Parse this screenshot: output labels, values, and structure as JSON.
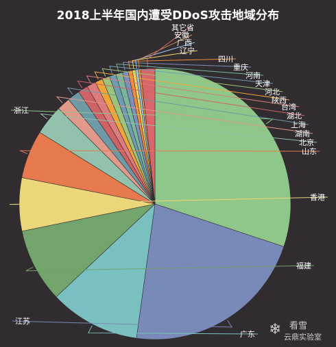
{
  "chart_data": {
    "type": "pie",
    "title": "2018上半年国内遭受DDoS攻击地域分布",
    "start_angle_deg": 0,
    "slices": [
      {
        "label": "浙江",
        "value": 30.4,
        "color": "#8fc78a"
      },
      {
        "label": "江苏",
        "value": 22.3,
        "color": "#7a8ab8"
      },
      {
        "label": "广东",
        "value": 10.9,
        "color": "#7bc0c0"
      },
      {
        "label": "福建",
        "value": 8.9,
        "color": "#72a46b"
      },
      {
        "label": "香港",
        "value": 6.4,
        "color": "#ecd67a"
      },
      {
        "label": "山东",
        "value": 5.8,
        "color": "#e67a4e"
      },
      {
        "label": "北京",
        "value": 3.6,
        "color": "#92c2ac"
      },
      {
        "label": "湖南",
        "value": 1.6,
        "color": "#e19a8a"
      },
      {
        "label": "上海",
        "value": 1.5,
        "color": "#6e9aa5"
      },
      {
        "label": "湖北",
        "value": 1.2,
        "color": "#cf6266"
      },
      {
        "label": "台湾",
        "value": 1.1,
        "color": "#dc7c7c"
      },
      {
        "label": "陕西",
        "value": 0.9,
        "color": "#f0a53a"
      },
      {
        "label": "河北",
        "value": 0.9,
        "color": "#9cc47a"
      },
      {
        "label": "天津",
        "value": 0.8,
        "color": "#6f9cb2"
      },
      {
        "label": "河南",
        "value": 0.8,
        "color": "#7ab89e"
      },
      {
        "label": "重庆",
        "value": 0.7,
        "color": "#7f8fb8"
      },
      {
        "label": "四川",
        "value": 0.5,
        "color": "#f08c3c"
      },
      {
        "label": "辽宁",
        "value": 0.4,
        "color": "#f0d060"
      },
      {
        "label": "广西",
        "value": 0.3,
        "color": "#a0c8f0"
      },
      {
        "label": "安徽",
        "value": 0.3,
        "color": "#d09050"
      },
      {
        "label": "其它省",
        "value": 1.7,
        "color": "#d8666a"
      }
    ]
  },
  "watermark": {
    "icon": "snowflake-icon",
    "top": "看雪",
    "bottom": "云鼎实验室"
  }
}
